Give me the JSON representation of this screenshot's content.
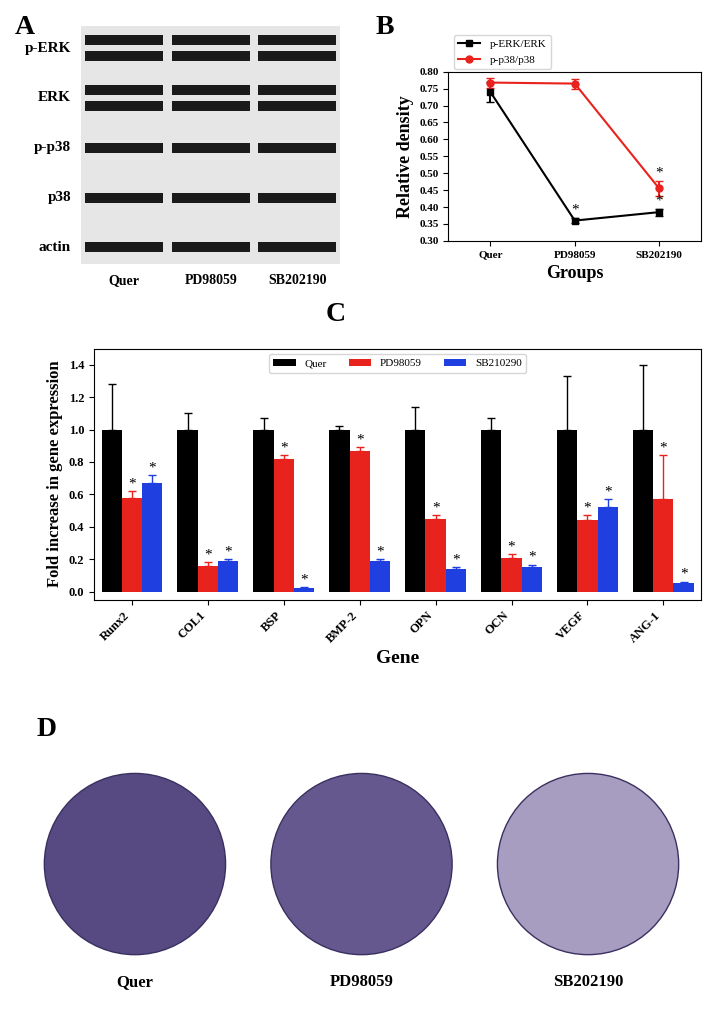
{
  "blot": {
    "panel_label": "A",
    "rows": [
      "p-ERK",
      "ERK",
      "p-p38",
      "p38",
      "actin"
    ],
    "lanes": [
      "Quer",
      "PD98059",
      "SB202190"
    ]
  },
  "chart_data": [
    {
      "type": "line",
      "panel_label": "B",
      "x_label": "Groups",
      "y_label": "Relative density",
      "categories": [
        "Quer",
        "PD98059",
        "SB202190"
      ],
      "ylim": [
        0.3,
        0.8
      ],
      "yticks": [
        {
          "value": 0.3,
          "label": "0.30"
        },
        {
          "value": 0.35,
          "label": "0.35"
        },
        {
          "value": 0.4,
          "label": "0.40"
        },
        {
          "value": 0.45,
          "label": "0.45"
        },
        {
          "value": 0.5,
          "label": "0.50"
        },
        {
          "value": 0.55,
          "label": "0.55"
        },
        {
          "value": 0.6,
          "label": "0.60"
        },
        {
          "value": 0.65,
          "label": "0.65"
        },
        {
          "value": 0.7,
          "label": "0.70"
        },
        {
          "value": 0.75,
          "label": "0.75"
        },
        {
          "value": 0.8,
          "label": "0.80"
        }
      ],
      "legend": "upper left",
      "series": [
        {
          "name": "p-ERK/ERK",
          "color": "#000000",
          "marker": "square",
          "values": [
            0.74,
            0.36,
            0.385
          ],
          "errors": [
            0.03,
            0.008,
            0.01
          ],
          "significance": [
            null,
            "*",
            "*"
          ]
        },
        {
          "name": "p-p38/p38",
          "color": "#e8221c",
          "marker": "circle",
          "values": [
            0.768,
            0.765,
            0.455
          ],
          "errors": [
            0.015,
            0.015,
            0.022
          ],
          "significance": [
            null,
            null,
            "*"
          ]
        }
      ]
    },
    {
      "type": "bar",
      "panel_label": "C",
      "x_label": "Gene",
      "y_label": "Fold increase in gene expression",
      "categories": [
        "Runx2",
        "COL1",
        "BSP",
        "BMP-2",
        "OPN",
        "OCN",
        "VEGF",
        "ANG-1"
      ],
      "ylim": [
        -0.05,
        1.5
      ],
      "yticks": [
        {
          "value": 0.0,
          "label": "0.0"
        },
        {
          "value": 0.2,
          "label": "0.2"
        },
        {
          "value": 0.4,
          "label": "0.4"
        },
        {
          "value": 0.6,
          "label": "0.6"
        },
        {
          "value": 0.8,
          "label": "0.8"
        },
        {
          "value": 1.0,
          "label": "1.0"
        },
        {
          "value": 1.2,
          "label": "1.2"
        },
        {
          "value": 1.4,
          "label": "1.4"
        }
      ],
      "legend": "upper center",
      "series": [
        {
          "name": "Quer",
          "color": "#000000",
          "values": [
            1.0,
            1.0,
            1.0,
            1.0,
            1.0,
            1.0,
            1.0,
            1.0
          ],
          "errors": [
            0.28,
            0.1,
            0.07,
            0.02,
            0.14,
            0.07,
            0.33,
            0.4
          ],
          "significance": [
            null,
            null,
            null,
            null,
            null,
            null,
            null,
            null
          ]
        },
        {
          "name": "PD98059",
          "color": "#e8221c",
          "values": [
            0.58,
            0.16,
            0.82,
            0.87,
            0.45,
            0.21,
            0.44,
            0.57
          ],
          "errors": [
            0.04,
            0.02,
            0.02,
            0.02,
            0.02,
            0.02,
            0.03,
            0.27
          ],
          "significance": [
            "*",
            "*",
            "*",
            "*",
            "*",
            "*",
            "*",
            "*"
          ]
        },
        {
          "name": "SB210290",
          "color": "#1f3fe0",
          "values": [
            0.67,
            0.19,
            0.02,
            0.19,
            0.14,
            0.15,
            0.52,
            0.05
          ],
          "errors": [
            0.05,
            0.01,
            0.005,
            0.01,
            0.01,
            0.015,
            0.05,
            0.01
          ],
          "significance": [
            "*",
            "*",
            "*",
            "*",
            "*",
            "*",
            "*",
            "*"
          ]
        }
      ]
    }
  ],
  "dishes": {
    "panel_label": "D",
    "groups": [
      "Quer",
      "PD98059",
      "SB202190"
    ]
  }
}
